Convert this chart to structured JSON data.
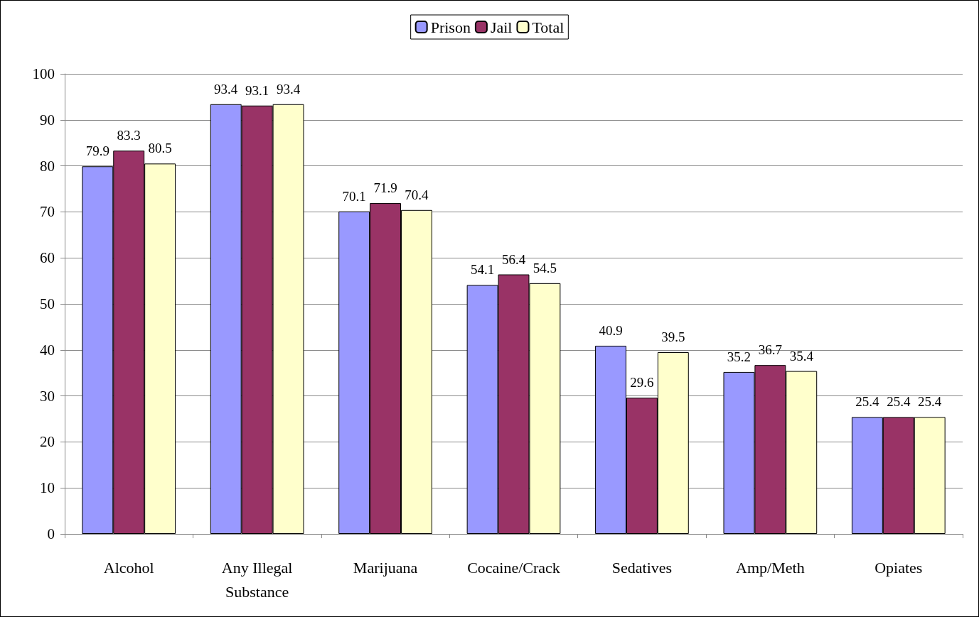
{
  "chart_data": {
    "type": "bar",
    "categories": [
      "Alcohol",
      "Any Illegal\nSubstance",
      "Marijuana",
      "Cocaine/Crack",
      "Sedatives",
      "Amp/Meth",
      "Opiates"
    ],
    "series": [
      {
        "name": "Prison",
        "color": "#9999ff",
        "values": [
          79.9,
          93.4,
          70.1,
          54.1,
          40.9,
          35.2,
          25.4
        ]
      },
      {
        "name": "Jail",
        "color": "#993366",
        "values": [
          83.3,
          93.1,
          71.9,
          56.4,
          29.6,
          36.7,
          25.4
        ]
      },
      {
        "name": "Total",
        "color": "#ffffcc",
        "values": [
          80.5,
          93.4,
          70.4,
          54.5,
          39.5,
          35.4,
          25.4
        ]
      }
    ],
    "ylim": [
      0,
      100
    ],
    "yticks": [
      0,
      10,
      20,
      30,
      40,
      50,
      60,
      70,
      80,
      90,
      100
    ],
    "grid": "y",
    "legend": "top",
    "data_labels": true
  }
}
